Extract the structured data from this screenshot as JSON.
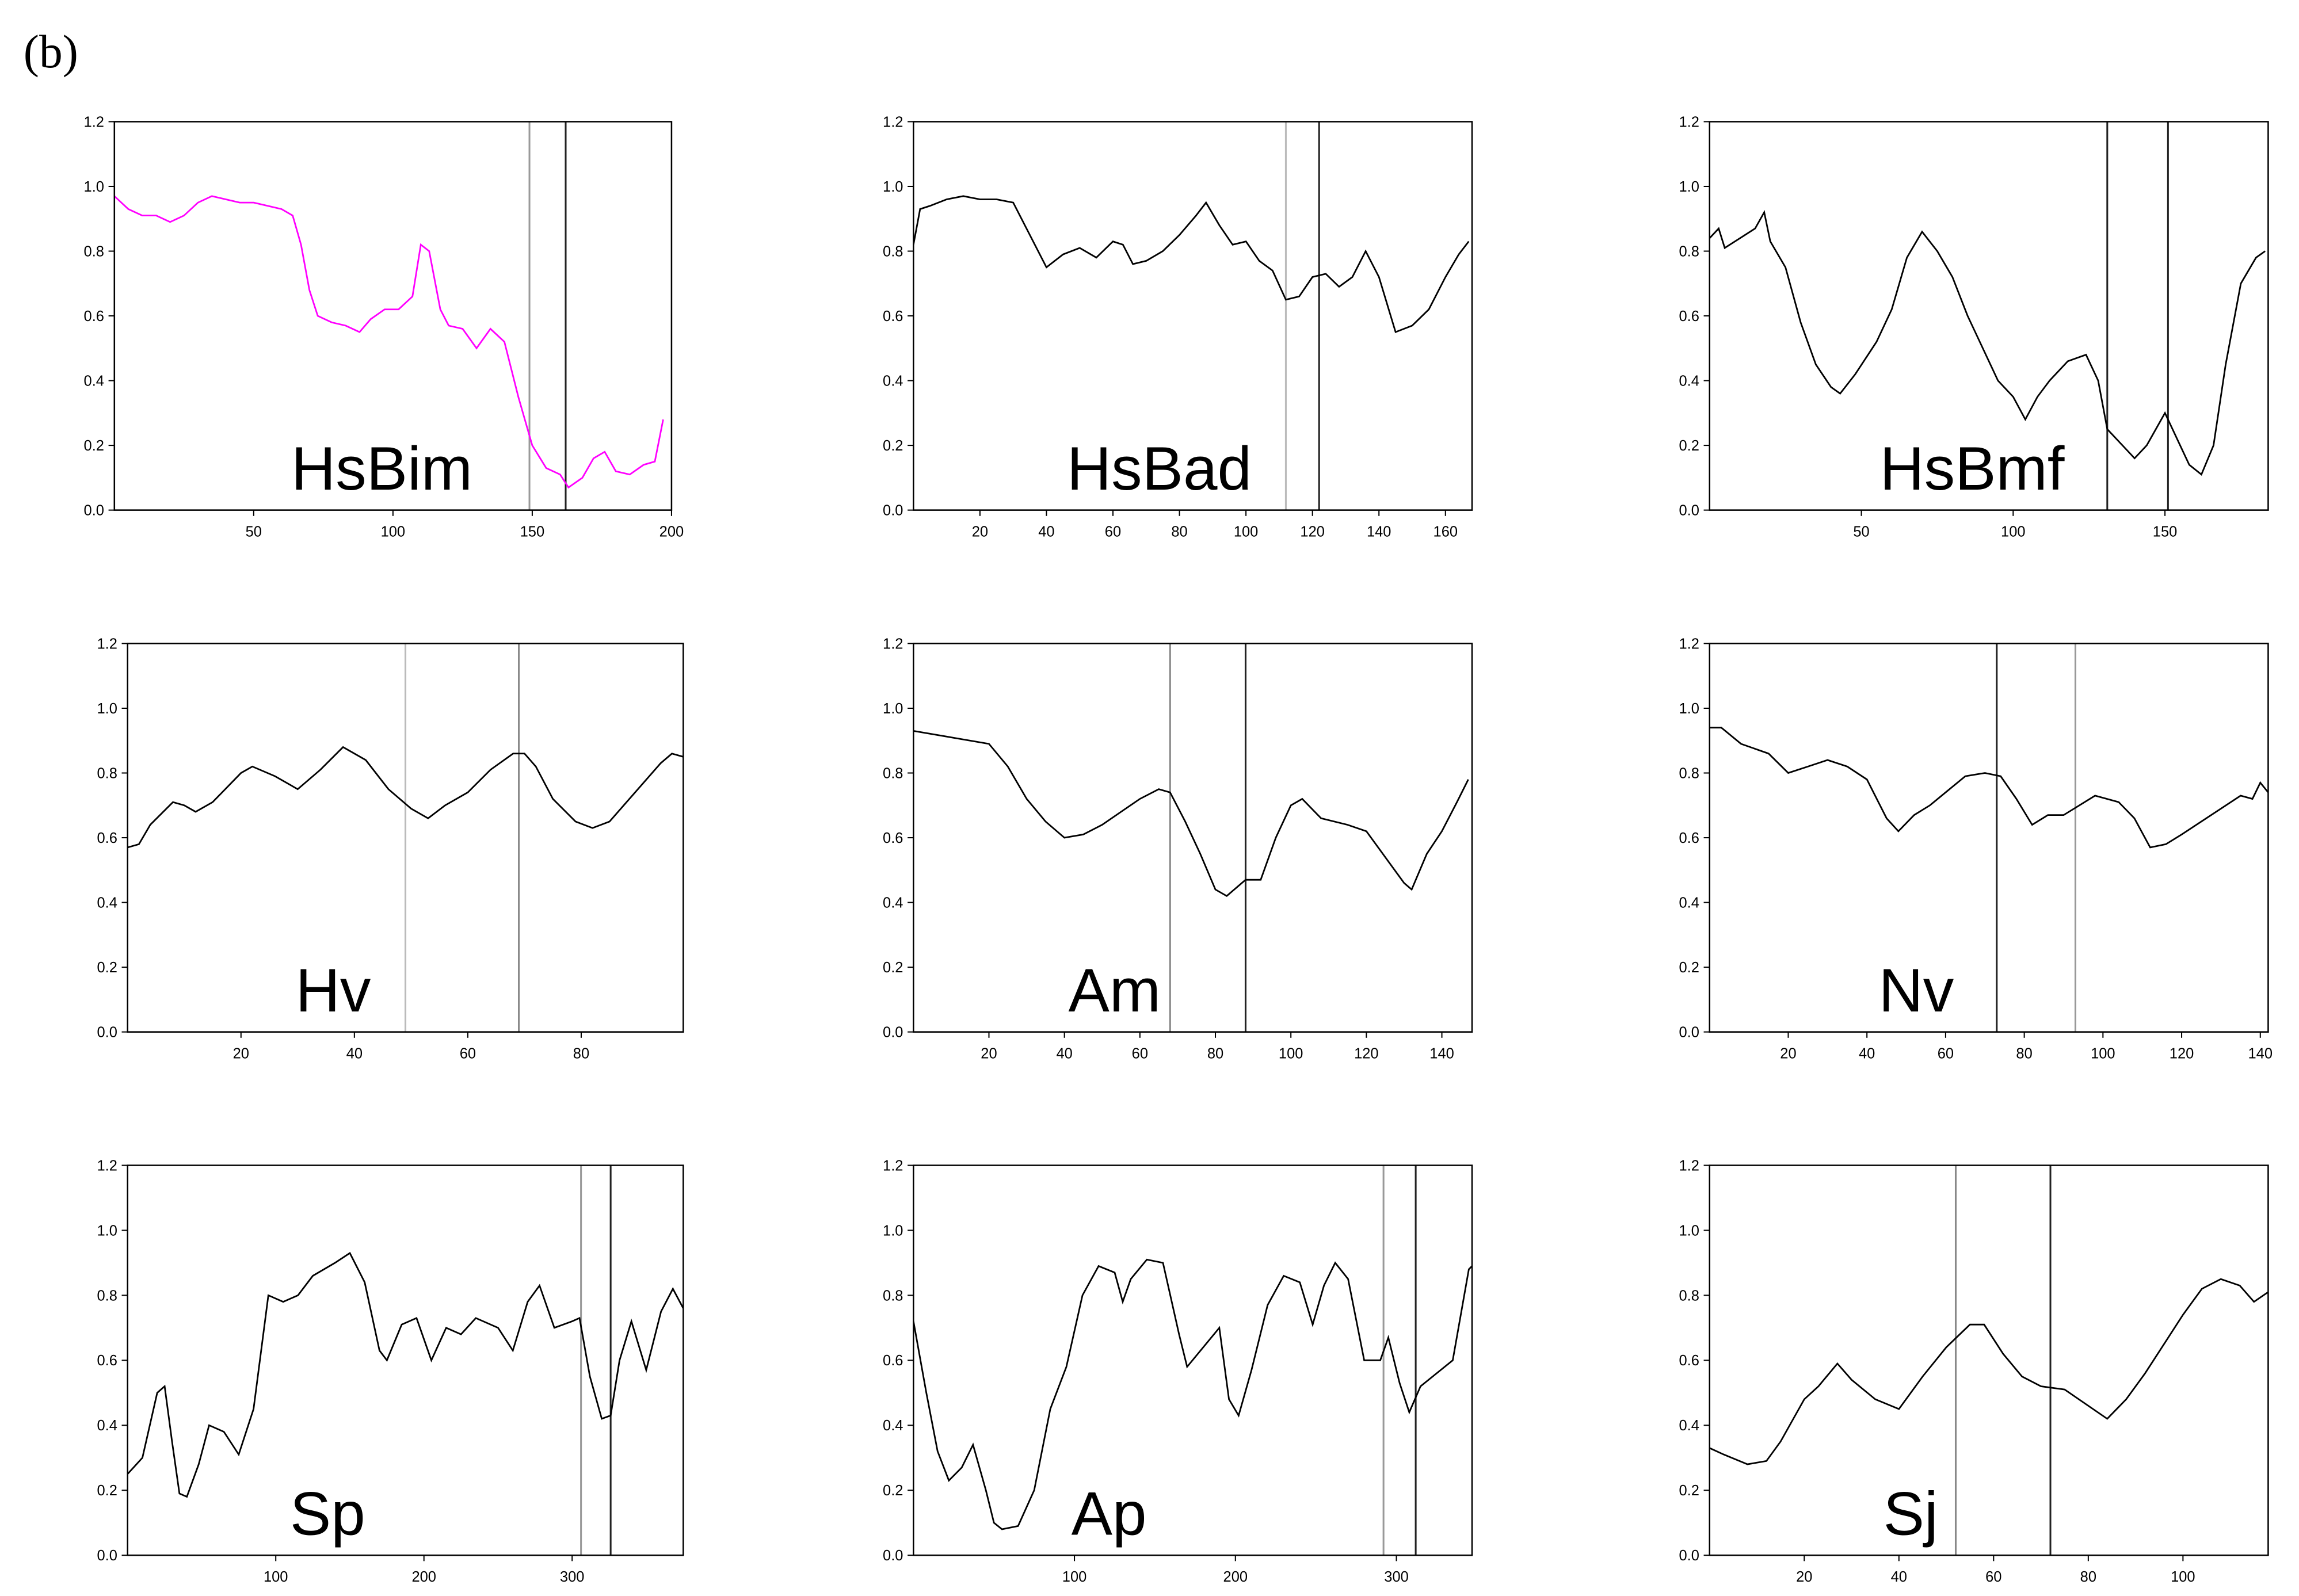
{
  "panel_label": "(b)",
  "chart_data": [
    {
      "type": "line",
      "label": "HsBim",
      "color": "#ff00ff",
      "x": [
        0,
        5,
        10,
        15,
        20,
        25,
        30,
        35,
        40,
        45,
        50,
        55,
        60,
        64,
        67,
        70,
        73,
        78,
        83,
        88,
        92,
        97,
        102,
        107,
        110,
        113,
        117,
        120,
        125,
        130,
        135,
        140,
        145,
        150,
        155,
        160,
        163,
        168,
        172,
        176,
        180,
        185,
        190,
        194,
        197
      ],
      "values": [
        0.97,
        0.93,
        0.91,
        0.91,
        0.89,
        0.91,
        0.95,
        0.97,
        0.96,
        0.95,
        0.95,
        0.94,
        0.93,
        0.91,
        0.82,
        0.68,
        0.6,
        0.58,
        0.57,
        0.55,
        0.59,
        0.62,
        0.62,
        0.66,
        0.82,
        0.8,
        0.62,
        0.57,
        0.56,
        0.5,
        0.56,
        0.52,
        0.35,
        0.2,
        0.13,
        0.11,
        0.07,
        0.1,
        0.16,
        0.18,
        0.12,
        0.11,
        0.14,
        0.15,
        0.28
      ],
      "vlines": [
        {
          "x": 149,
          "color": "#999999"
        },
        {
          "x": 162,
          "color": "#222222"
        }
      ],
      "xlim": [
        0,
        200
      ],
      "xticks": [
        50,
        100,
        150,
        200
      ],
      "ylim": [
        0,
        1.2
      ],
      "yticks": [
        {
          "value": 0,
          "label": "0.0"
        },
        0.2,
        0.4,
        0.6,
        0.8,
        {
          "value": 1,
          "label": "1.0"
        },
        1.2
      ]
    },
    {
      "type": "line",
      "label": "HsBad",
      "color": "#000000",
      "x": [
        0,
        2,
        5,
        10,
        15,
        20,
        25,
        30,
        35,
        40,
        45,
        50,
        55,
        60,
        63,
        66,
        70,
        75,
        80,
        85,
        88,
        92,
        96,
        100,
        104,
        108,
        112,
        116,
        120,
        124,
        128,
        132,
        136,
        140,
        145,
        150,
        155,
        160,
        164,
        167
      ],
      "values": [
        0.82,
        0.93,
        0.94,
        0.96,
        0.97,
        0.96,
        0.96,
        0.95,
        0.85,
        0.75,
        0.79,
        0.81,
        0.78,
        0.83,
        0.82,
        0.76,
        0.77,
        0.8,
        0.85,
        0.91,
        0.95,
        0.88,
        0.82,
        0.83,
        0.77,
        0.74,
        0.65,
        0.66,
        0.72,
        0.73,
        0.69,
        0.72,
        0.8,
        0.72,
        0.55,
        0.57,
        0.62,
        0.72,
        0.79,
        0.83
      ],
      "vlines": [
        {
          "x": 112,
          "color": "#bbbbbb"
        },
        {
          "x": 122,
          "color": "#222222"
        }
      ],
      "xlim": [
        0,
        168
      ],
      "xticks": [
        20,
        40,
        60,
        80,
        100,
        120,
        140,
        160
      ],
      "ylim": [
        0,
        1.2
      ],
      "yticks": [
        {
          "value": 0,
          "label": "0.0"
        },
        0.2,
        0.4,
        0.6,
        0.8,
        {
          "value": 1,
          "label": "1.0"
        },
        1.2
      ]
    },
    {
      "type": "line",
      "label": "HsBmf",
      "color": "#000000",
      "x": [
        0,
        3,
        5,
        10,
        15,
        18,
        20,
        25,
        30,
        35,
        40,
        43,
        48,
        55,
        60,
        65,
        70,
        75,
        80,
        85,
        90,
        95,
        100,
        104,
        108,
        112,
        118,
        124,
        128,
        131,
        136,
        140,
        144,
        150,
        154,
        158,
        162,
        166,
        170,
        175,
        180,
        183
      ],
      "values": [
        0.84,
        0.87,
        0.81,
        0.84,
        0.87,
        0.92,
        0.83,
        0.75,
        0.58,
        0.45,
        0.38,
        0.36,
        0.42,
        0.52,
        0.62,
        0.78,
        0.86,
        0.8,
        0.72,
        0.6,
        0.5,
        0.4,
        0.35,
        0.28,
        0.35,
        0.4,
        0.46,
        0.48,
        0.4,
        0.25,
        0.2,
        0.16,
        0.2,
        0.3,
        0.22,
        0.14,
        0.11,
        0.2,
        0.45,
        0.7,
        0.78,
        0.8
      ],
      "vlines": [
        {
          "x": 131,
          "color": "#222222"
        },
        {
          "x": 151,
          "color": "#222222"
        }
      ],
      "xlim": [
        0,
        184
      ],
      "xticks": [
        50,
        100,
        150
      ],
      "ylim": [
        0,
        1.2
      ],
      "yticks": [
        {
          "value": 0,
          "label": "0.0"
        },
        0.2,
        0.4,
        0.6,
        0.8,
        {
          "value": 1,
          "label": "1.0"
        },
        1.2
      ]
    },
    {
      "type": "line",
      "label": "Hv",
      "color": "#000000",
      "x": [
        0,
        2,
        4,
        8,
        10,
        12,
        15,
        20,
        22,
        26,
        30,
        34,
        38,
        42,
        46,
        50,
        53,
        56,
        60,
        64,
        68,
        70,
        72,
        75,
        79,
        82,
        85,
        90,
        94,
        96,
        98
      ],
      "values": [
        0.57,
        0.58,
        0.64,
        0.71,
        0.7,
        0.68,
        0.71,
        0.8,
        0.82,
        0.79,
        0.75,
        0.81,
        0.88,
        0.84,
        0.75,
        0.69,
        0.66,
        0.7,
        0.74,
        0.81,
        0.86,
        0.86,
        0.82,
        0.72,
        0.65,
        0.63,
        0.65,
        0.75,
        0.83,
        0.86,
        0.85
      ],
      "vlines": [
        {
          "x": 49,
          "color": "#bbbbbb"
        },
        {
          "x": 69,
          "color": "#888888"
        }
      ],
      "xlim": [
        0,
        98
      ],
      "xticks": [
        20,
        40,
        60,
        80
      ],
      "ylim": [
        0,
        1.2
      ],
      "yticks": [
        {
          "value": 0,
          "label": "0.0"
        },
        0.2,
        0.4,
        0.6,
        0.8,
        {
          "value": 1,
          "label": "1.0"
        },
        1.2
      ]
    },
    {
      "type": "line",
      "label": "Am",
      "color": "#000000",
      "x": [
        0,
        10,
        20,
        25,
        30,
        35,
        40,
        45,
        50,
        55,
        60,
        65,
        68,
        72,
        76,
        80,
        83,
        88,
        92,
        96,
        100,
        103,
        108,
        115,
        120,
        125,
        130,
        132,
        136,
        140,
        144,
        147
      ],
      "values": [
        0.93,
        0.91,
        0.89,
        0.82,
        0.72,
        0.65,
        0.6,
        0.61,
        0.64,
        0.68,
        0.72,
        0.75,
        0.74,
        0.65,
        0.55,
        0.44,
        0.42,
        0.47,
        0.47,
        0.6,
        0.7,
        0.72,
        0.66,
        0.64,
        0.62,
        0.54,
        0.46,
        0.44,
        0.55,
        0.62,
        0.71,
        0.78
      ],
      "vlines": [
        {
          "x": 68,
          "color": "#888888"
        },
        {
          "x": 88,
          "color": "#222222"
        }
      ],
      "xlim": [
        0,
        148
      ],
      "xticks": [
        20,
        40,
        60,
        80,
        100,
        120,
        140
      ],
      "ylim": [
        0,
        1.2
      ],
      "yticks": [
        {
          "value": 0,
          "label": "0.0"
        },
        0.2,
        0.4,
        0.6,
        0.8,
        {
          "value": 1,
          "label": "1.0"
        },
        1.2
      ]
    },
    {
      "type": "line",
      "label": "Nv",
      "color": "#000000",
      "x": [
        0,
        3,
        8,
        15,
        20,
        25,
        30,
        35,
        40,
        45,
        48,
        52,
        56,
        60,
        65,
        70,
        74,
        78,
        82,
        86,
        90,
        94,
        98,
        104,
        108,
        112,
        116,
        120,
        125,
        130,
        135,
        138,
        140,
        142
      ],
      "values": [
        0.94,
        0.94,
        0.89,
        0.86,
        0.8,
        0.82,
        0.84,
        0.82,
        0.78,
        0.66,
        0.62,
        0.67,
        0.7,
        0.74,
        0.79,
        0.8,
        0.79,
        0.72,
        0.64,
        0.67,
        0.67,
        0.7,
        0.73,
        0.71,
        0.66,
        0.57,
        0.58,
        0.61,
        0.65,
        0.69,
        0.73,
        0.72,
        0.77,
        0.74
      ],
      "vlines": [
        {
          "x": 73,
          "color": "#222222"
        },
        {
          "x": 93,
          "color": "#999999"
        }
      ],
      "xlim": [
        0,
        142
      ],
      "xticks": [
        20,
        40,
        60,
        80,
        100,
        120,
        140
      ],
      "ylim": [
        0,
        1.2
      ],
      "yticks": [
        {
          "value": 0,
          "label": "0.0"
        },
        0.2,
        0.4,
        0.6,
        0.8,
        {
          "value": 1,
          "label": "1.0"
        },
        1.2
      ]
    },
    {
      "type": "line",
      "label": "Sp",
      "color": "#000000",
      "x": [
        0,
        10,
        20,
        25,
        30,
        35,
        40,
        48,
        55,
        65,
        75,
        85,
        95,
        105,
        115,
        125,
        140,
        150,
        160,
        170,
        175,
        185,
        195,
        205,
        215,
        225,
        235,
        250,
        260,
        270,
        278,
        288,
        300,
        305,
        312,
        320,
        326,
        332,
        340,
        350,
        360,
        368,
        375
      ],
      "values": [
        0.25,
        0.3,
        0.5,
        0.52,
        0.35,
        0.19,
        0.18,
        0.28,
        0.4,
        0.38,
        0.31,
        0.45,
        0.8,
        0.78,
        0.8,
        0.86,
        0.9,
        0.93,
        0.84,
        0.63,
        0.6,
        0.71,
        0.73,
        0.6,
        0.7,
        0.68,
        0.73,
        0.7,
        0.63,
        0.78,
        0.83,
        0.7,
        0.72,
        0.73,
        0.55,
        0.42,
        0.43,
        0.6,
        0.72,
        0.57,
        0.75,
        0.82,
        0.76
      ],
      "vlines": [
        {
          "x": 306,
          "color": "#999999"
        },
        {
          "x": 326,
          "color": "#222222"
        }
      ],
      "xlim": [
        0,
        375
      ],
      "xticks": [
        100,
        200,
        300
      ],
      "ylim": [
        0,
        1.2
      ],
      "yticks": [
        {
          "value": 0,
          "label": "0.0"
        },
        0.2,
        0.4,
        0.6,
        0.8,
        {
          "value": 1,
          "label": "1.0"
        },
        1.2
      ]
    },
    {
      "type": "line",
      "label": "Ap",
      "color": "#000000",
      "x": [
        0,
        8,
        15,
        22,
        30,
        37,
        45,
        50,
        55,
        65,
        75,
        85,
        95,
        105,
        115,
        125,
        130,
        135,
        145,
        155,
        165,
        170,
        180,
        190,
        196,
        202,
        210,
        220,
        230,
        240,
        248,
        255,
        262,
        270,
        280,
        290,
        295,
        302,
        308,
        315,
        325,
        335,
        345,
        347
      ],
      "values": [
        0.72,
        0.5,
        0.32,
        0.23,
        0.27,
        0.34,
        0.2,
        0.1,
        0.08,
        0.09,
        0.2,
        0.45,
        0.58,
        0.8,
        0.89,
        0.87,
        0.78,
        0.85,
        0.91,
        0.9,
        0.68,
        0.58,
        0.64,
        0.7,
        0.48,
        0.43,
        0.57,
        0.77,
        0.86,
        0.84,
        0.71,
        0.83,
        0.9,
        0.85,
        0.6,
        0.6,
        0.67,
        0.53,
        0.44,
        0.52,
        0.56,
        0.6,
        0.88,
        0.89
      ],
      "vlines": [
        {
          "x": 292,
          "color": "#999999"
        },
        {
          "x": 312,
          "color": "#222222"
        }
      ],
      "xlim": [
        0,
        347
      ],
      "xticks": [
        100,
        200,
        300
      ],
      "ylim": [
        0,
        1.2
      ],
      "yticks": [
        {
          "value": 0,
          "label": "0.0"
        },
        0.2,
        0.4,
        0.6,
        0.8,
        {
          "value": 1,
          "label": "1.0"
        },
        1.2
      ]
    },
    {
      "type": "line",
      "label": "Sj",
      "color": "#000000",
      "x": [
        0,
        3,
        8,
        12,
        15,
        20,
        23,
        27,
        30,
        35,
        40,
        45,
        50,
        55,
        58,
        62,
        66,
        70,
        75,
        80,
        84,
        88,
        92,
        96,
        100,
        104,
        108,
        112,
        115,
        118
      ],
      "values": [
        0.33,
        0.31,
        0.28,
        0.29,
        0.35,
        0.48,
        0.52,
        0.59,
        0.54,
        0.48,
        0.45,
        0.55,
        0.64,
        0.71,
        0.71,
        0.62,
        0.55,
        0.52,
        0.51,
        0.46,
        0.42,
        0.48,
        0.56,
        0.65,
        0.74,
        0.82,
        0.85,
        0.83,
        0.78,
        0.81
      ],
      "vlines": [
        {
          "x": 52,
          "color": "#888888"
        },
        {
          "x": 72,
          "color": "#222222"
        }
      ],
      "xlim": [
        0,
        118
      ],
      "xticks": [
        20,
        40,
        60,
        80,
        100
      ],
      "ylim": [
        0,
        1.2
      ],
      "yticks": [
        {
          "value": 0,
          "label": "0.0"
        },
        0.2,
        0.4,
        0.6,
        0.8,
        {
          "value": 1,
          "label": "1.0"
        },
        1.2
      ]
    }
  ]
}
